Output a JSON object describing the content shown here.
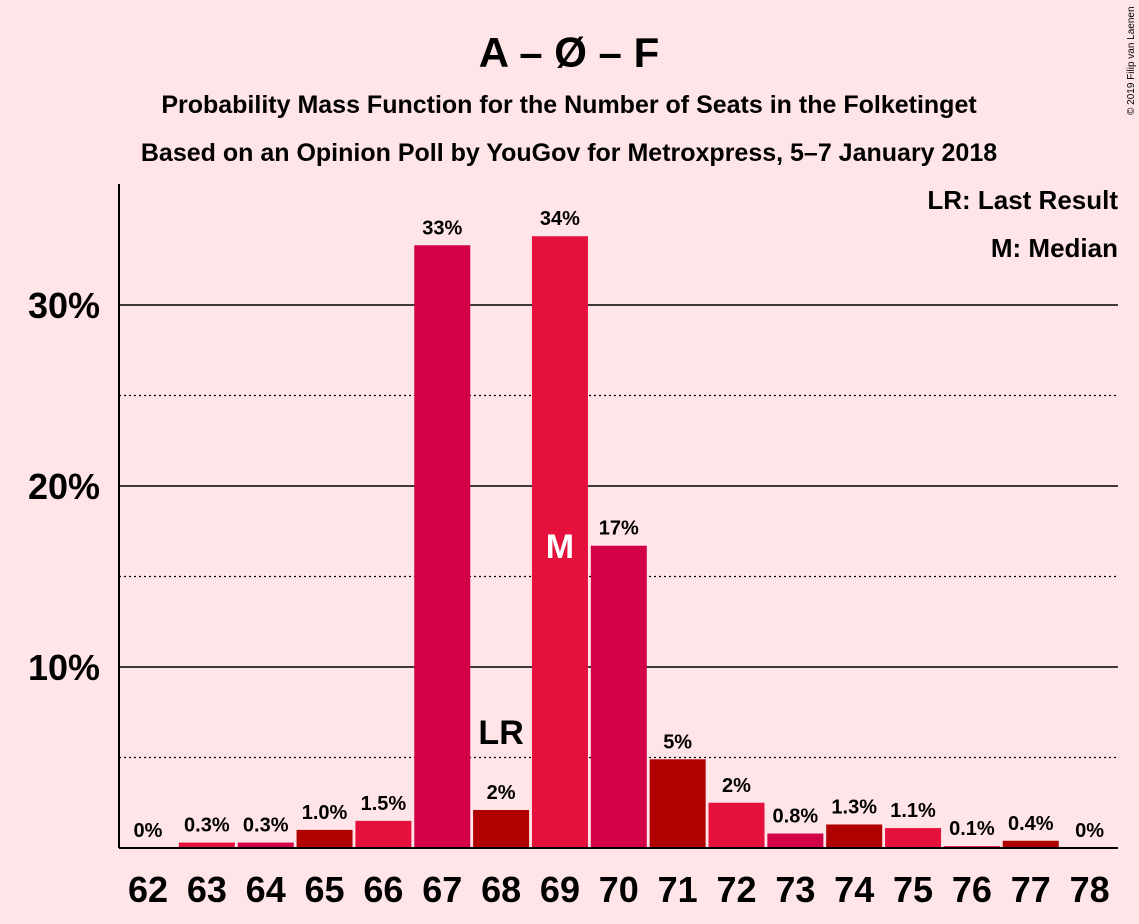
{
  "title": "A – Ø – F",
  "subtitle1": "Probability Mass Function for the Number of Seats in the Folketinget",
  "subtitle2": "Based on an Opinion Poll by YouGov for Metroxpress, 5–7 January 2018",
  "copyright": "© 2019 Filip van Laenen",
  "legend": {
    "lr": "LR: Last Result",
    "m": "M: Median"
  },
  "markers": {
    "lr_label": "LR",
    "median_label": "M",
    "lr_seat": 68,
    "median_seat": 69
  },
  "colors": {
    "background": "#ffe4e8",
    "dark_red": "#b00000",
    "crimson": "#d10048",
    "red": "#e5103c"
  },
  "chart_data": {
    "type": "bar",
    "categories": [
      "62",
      "63",
      "64",
      "65",
      "66",
      "67",
      "68",
      "69",
      "70",
      "71",
      "72",
      "73",
      "74",
      "75",
      "76",
      "77",
      "78"
    ],
    "values": [
      0,
      0.3,
      0.3,
      1.0,
      1.5,
      33.3,
      2.1,
      33.8,
      16.7,
      4.9,
      2.5,
      0.8,
      1.3,
      1.1,
      0.1,
      0.4,
      0
    ],
    "labels": [
      "0%",
      "0.3%",
      "0.3%",
      "1.0%",
      "1.5%",
      "33%",
      "2%",
      "34%",
      "17%",
      "5%",
      "2%",
      "0.8%",
      "1.3%",
      "1.1%",
      "0.1%",
      "0.4%",
      "0%"
    ],
    "bar_colors": [
      "#e5103c",
      "#e5103c",
      "#d10048",
      "#b00000",
      "#e5103c",
      "#d10048",
      "#b00000",
      "#e5103c",
      "#d10048",
      "#b00000",
      "#e5103c",
      "#d10048",
      "#b00000",
      "#e5103c",
      "#d10048",
      "#b00000",
      "#e5103c"
    ],
    "yticks": [
      10,
      20,
      30
    ],
    "ytick_labels": [
      "10%",
      "20%",
      "30%"
    ],
    "minor_yticks": [
      5,
      15,
      25
    ],
    "ylim": [
      0,
      37
    ]
  }
}
